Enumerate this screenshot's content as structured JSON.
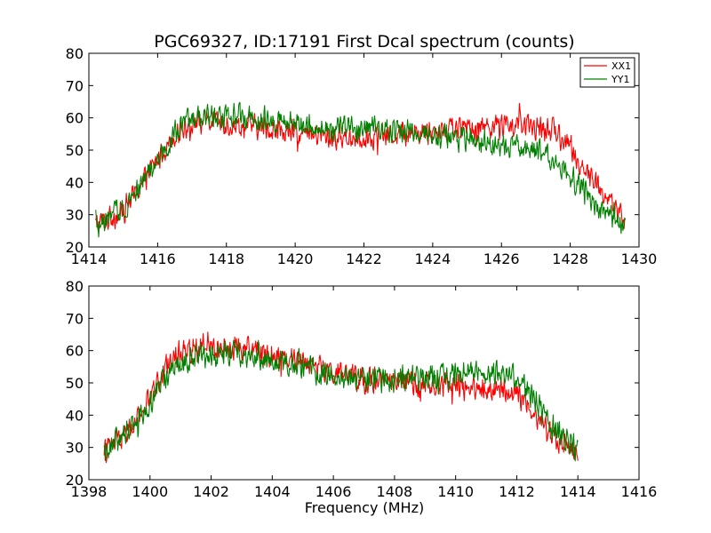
{
  "chart_data": [
    {
      "type": "line",
      "title": "PGC69327, ID:17191 First Dcal spectrum (counts)",
      "xlabel": "",
      "ylabel": "",
      "xlim": [
        1414,
        1430
      ],
      "ylim": [
        20,
        80
      ],
      "xticks": [
        "1414",
        "1416",
        "1418",
        "1420",
        "1422",
        "1424",
        "1426",
        "1428",
        "1430"
      ],
      "yticks": [
        "20",
        "30",
        "40",
        "50",
        "60",
        "70",
        "80"
      ],
      "legend": {
        "position": "top-right",
        "entries": [
          "XX1",
          "YY1"
        ]
      },
      "series": [
        {
          "name": "XX1",
          "color": "#ff0000",
          "x_range": [
            1414.2,
            1429.6
          ],
          "profile": [
            [
              1414.2,
              27
            ],
            [
              1415.0,
              31
            ],
            [
              1416.0,
              47
            ],
            [
              1416.5,
              55
            ],
            [
              1417.0,
              59
            ],
            [
              1418.0,
              58
            ],
            [
              1419.0,
              57
            ],
            [
              1420.0,
              55
            ],
            [
              1421.0,
              54
            ],
            [
              1422.0,
              54
            ],
            [
              1423.0,
              55
            ],
            [
              1424.0,
              56
            ],
            [
              1425.0,
              57
            ],
            [
              1426.0,
              58
            ],
            [
              1427.0,
              57
            ],
            [
              1427.6,
              56
            ],
            [
              1428.0,
              50
            ],
            [
              1428.5,
              43
            ],
            [
              1429.0,
              36
            ],
            [
              1429.6,
              28
            ]
          ],
          "noise": 4.5
        },
        {
          "name": "YY1",
          "color": "#008000",
          "x_range": [
            1414.2,
            1429.6
          ],
          "profile": [
            [
              1414.2,
              26
            ],
            [
              1415.0,
              32
            ],
            [
              1416.0,
              47
            ],
            [
              1416.5,
              55
            ],
            [
              1417.0,
              60
            ],
            [
              1418.0,
              61
            ],
            [
              1419.0,
              60
            ],
            [
              1420.0,
              58
            ],
            [
              1421.0,
              57
            ],
            [
              1422.0,
              57
            ],
            [
              1423.0,
              56
            ],
            [
              1424.0,
              55
            ],
            [
              1425.0,
              53
            ],
            [
              1426.0,
              51
            ],
            [
              1427.0,
              50
            ],
            [
              1427.5,
              48
            ],
            [
              1428.0,
              42
            ],
            [
              1428.5,
              36
            ],
            [
              1429.0,
              30
            ],
            [
              1429.6,
              27
            ]
          ],
          "noise": 4.5
        }
      ]
    },
    {
      "type": "line",
      "title": "",
      "xlabel": "Frequency (MHz)",
      "ylabel": "",
      "xlim": [
        1398,
        1416
      ],
      "ylim": [
        20,
        80
      ],
      "xticks": [
        "1398",
        "1400",
        "1402",
        "1404",
        "1406",
        "1408",
        "1410",
        "1412",
        "1414",
        "1416"
      ],
      "yticks": [
        "20",
        "30",
        "40",
        "50",
        "60",
        "70",
        "80"
      ],
      "series": [
        {
          "name": "XX1",
          "color": "#ff0000",
          "x_range": [
            1398.5,
            1414.0
          ],
          "profile": [
            [
              1398.5,
              29
            ],
            [
              1399.0,
              32
            ],
            [
              1399.5,
              37
            ],
            [
              1400.0,
              45
            ],
            [
              1400.5,
              55
            ],
            [
              1401.0,
              60
            ],
            [
              1402.0,
              61
            ],
            [
              1403.0,
              61
            ],
            [
              1404.0,
              59
            ],
            [
              1405.0,
              57
            ],
            [
              1406.0,
              53
            ],
            [
              1407.0,
              51
            ],
            [
              1408.0,
              50
            ],
            [
              1409.0,
              49
            ],
            [
              1410.0,
              49
            ],
            [
              1411.0,
              48
            ],
            [
              1412.0,
              47
            ],
            [
              1412.5,
              42
            ],
            [
              1413.0,
              35
            ],
            [
              1413.5,
              31
            ],
            [
              1414.0,
              29
            ]
          ],
          "noise": 4.5
        },
        {
          "name": "YY1",
          "color": "#008000",
          "x_range": [
            1398.5,
            1414.0
          ],
          "profile": [
            [
              1398.5,
              29
            ],
            [
              1399.0,
              33
            ],
            [
              1399.5,
              38
            ],
            [
              1400.0,
              44
            ],
            [
              1400.5,
              52
            ],
            [
              1401.0,
              56
            ],
            [
              1402.0,
              59
            ],
            [
              1403.0,
              59
            ],
            [
              1404.0,
              57
            ],
            [
              1405.0,
              55
            ],
            [
              1406.0,
              52
            ],
            [
              1407.0,
              51
            ],
            [
              1408.0,
              51
            ],
            [
              1409.0,
              52
            ],
            [
              1410.0,
              53
            ],
            [
              1411.0,
              54
            ],
            [
              1411.8,
              53
            ],
            [
              1412.5,
              46
            ],
            [
              1413.0,
              38
            ],
            [
              1413.5,
              33
            ],
            [
              1414.0,
              29
            ]
          ],
          "noise": 4.5
        }
      ]
    }
  ]
}
